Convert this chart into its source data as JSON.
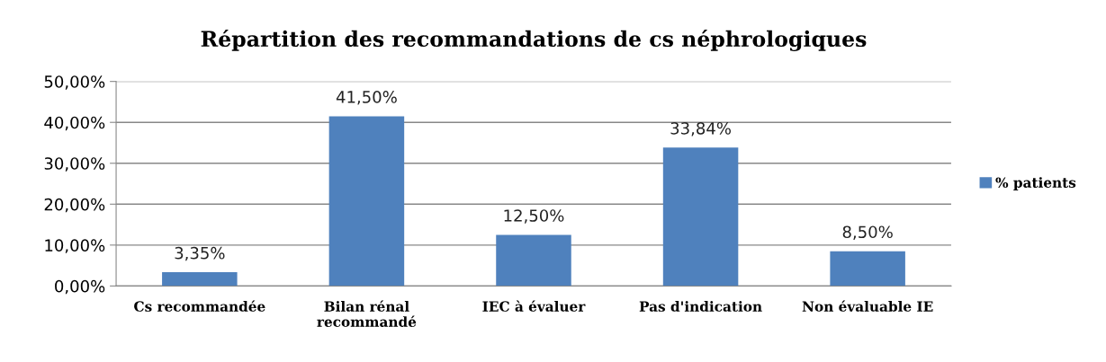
{
  "chart_data": {
    "type": "bar",
    "title": "Répartition des recommandations de cs néphrologiques",
    "categories": [
      "Cs recommandée",
      "Bilan rénal\nrecommandé",
      "IEC à évaluer",
      "Pas d'indication",
      "Non évaluable IE"
    ],
    "series": [
      {
        "name": "% patients",
        "color": "#4f81bd",
        "values": [
          3.35,
          41.5,
          12.5,
          33.84,
          8.5
        ],
        "value_labels": [
          "3,35%",
          "41,50%",
          "12,50%",
          "33,84%",
          "8,50%"
        ]
      }
    ],
    "ylim": [
      0,
      50
    ],
    "yticks": [
      {
        "value": 0,
        "label": "0,00%"
      },
      {
        "value": 10,
        "label": "10,00%"
      },
      {
        "value": 20,
        "label": "20,00%"
      },
      {
        "value": 30,
        "label": "30,00%"
      },
      {
        "value": 40,
        "label": "40,00%"
      },
      {
        "value": 50,
        "label": "50,00%"
      }
    ],
    "grid": "y",
    "legend": "right"
  }
}
